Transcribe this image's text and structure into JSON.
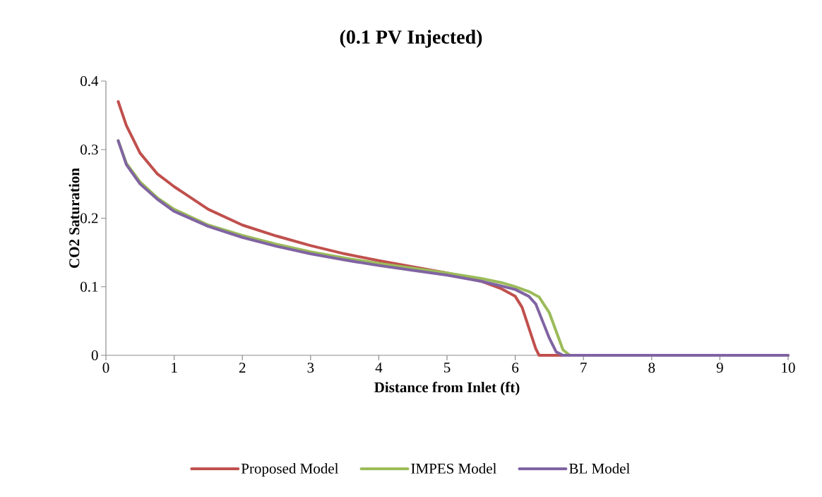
{
  "chart_data": {
    "type": "line",
    "title": "(0.1 PV Injected)",
    "xlabel": "Distance from Inlet (ft)",
    "ylabel": "CO2 Saturation",
    "xlim": [
      0,
      10
    ],
    "ylim": [
      0,
      0.4
    ],
    "xticks": [
      0,
      1,
      2,
      3,
      4,
      5,
      6,
      7,
      8,
      9,
      10
    ],
    "yticks": [
      0,
      0.1,
      0.2,
      0.3,
      0.4
    ],
    "legend": "bottom",
    "series": [
      {
        "name": "Proposed Model",
        "color": "#c0504d",
        "x": [
          0.18,
          0.3,
          0.5,
          0.75,
          1,
          1.5,
          2,
          2.5,
          3,
          3.5,
          4,
          4.5,
          5,
          5.5,
          5.8,
          6,
          6.1,
          6.2,
          6.3,
          6.35,
          10
        ],
        "values": [
          0.37,
          0.335,
          0.295,
          0.265,
          0.246,
          0.213,
          0.19,
          0.174,
          0.16,
          0.148,
          0.138,
          0.129,
          0.12,
          0.108,
          0.097,
          0.086,
          0.07,
          0.04,
          0.01,
          0,
          0
        ]
      },
      {
        "name": "IMPES Model",
        "color": "#9bbb59",
        "x": [
          0.18,
          0.3,
          0.5,
          0.75,
          1,
          1.5,
          2,
          2.5,
          3,
          3.5,
          4,
          4.5,
          5,
          5.5,
          5.8,
          6,
          6.2,
          6.35,
          6.5,
          6.6,
          6.7,
          6.8,
          10
        ],
        "values": [
          0.313,
          0.28,
          0.253,
          0.23,
          0.213,
          0.19,
          0.175,
          0.162,
          0.151,
          0.142,
          0.134,
          0.127,
          0.12,
          0.112,
          0.106,
          0.1,
          0.093,
          0.085,
          0.062,
          0.035,
          0.008,
          0,
          0
        ]
      },
      {
        "name": "BL Model",
        "color": "#8064a2",
        "x": [
          0.18,
          0.3,
          0.5,
          0.75,
          1,
          1.5,
          2,
          2.5,
          3,
          3.5,
          4,
          4.5,
          5,
          5.5,
          5.8,
          6,
          6.2,
          6.3,
          6.4,
          6.5,
          6.6,
          6.7,
          10
        ],
        "values": [
          0.313,
          0.278,
          0.25,
          0.228,
          0.21,
          0.188,
          0.172,
          0.159,
          0.148,
          0.139,
          0.131,
          0.124,
          0.117,
          0.108,
          0.101,
          0.096,
          0.086,
          0.075,
          0.05,
          0.025,
          0.005,
          0,
          0
        ]
      }
    ]
  }
}
